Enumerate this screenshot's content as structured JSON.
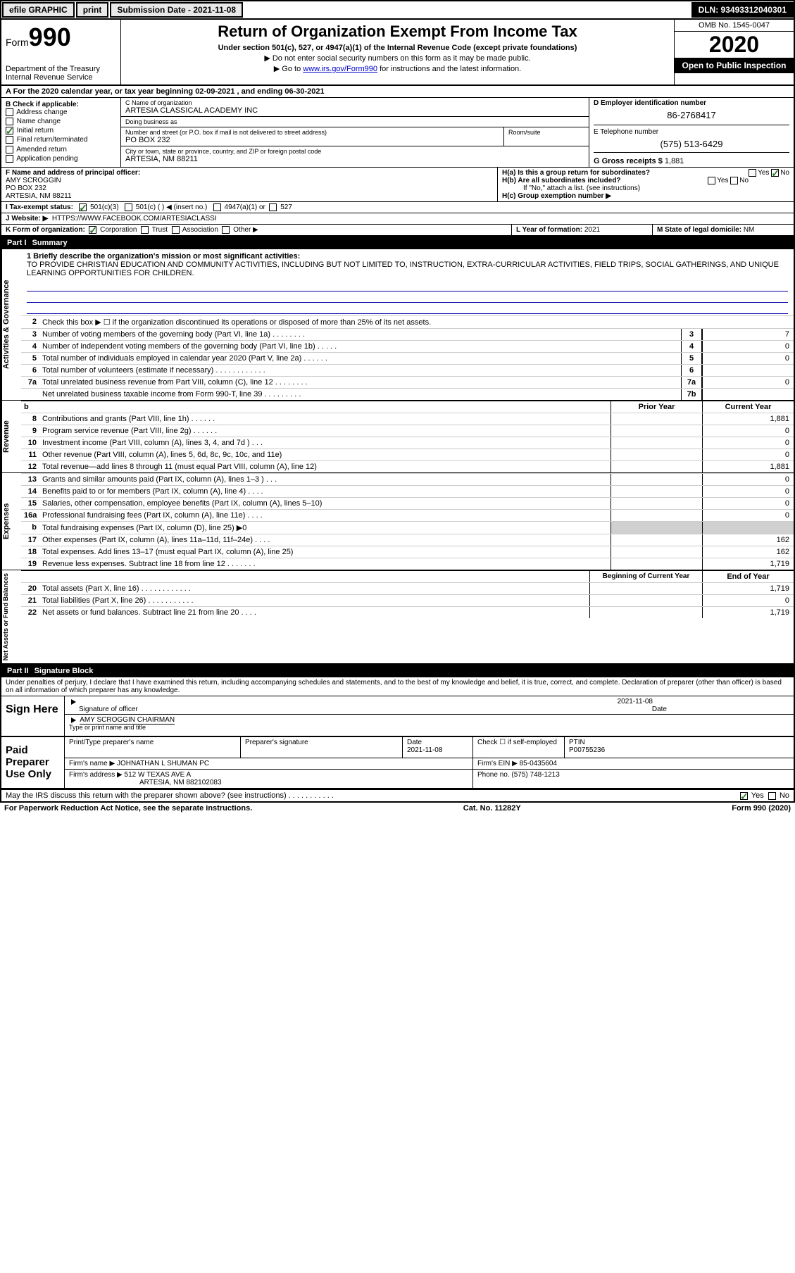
{
  "topbar": {
    "efile": "efile GRAPHIC",
    "print": "print",
    "submission_label": "Submission Date - 2021-11-08",
    "dln": "DLN: 93493312040301"
  },
  "header": {
    "form_label": "Form",
    "form_num": "990",
    "dept": "Department of the Treasury\nInternal Revenue Service",
    "title": "Return of Organization Exempt From Income Tax",
    "subtitle": "Under section 501(c), 527, or 4947(a)(1) of the Internal Revenue Code (except private foundations)",
    "note1": "▶ Do not enter social security numbers on this form as it may be made public.",
    "note2_pre": "▶ Go to ",
    "note2_link": "www.irs.gov/Form990",
    "note2_post": " for instructions and the latest information.",
    "omb": "OMB No. 1545-0047",
    "year": "2020",
    "inspection": "Open to Public Inspection"
  },
  "lineA": "A For the 2020 calendar year, or tax year beginning 02-09-2021   , and ending 06-30-2021",
  "sectionB": {
    "label": "B Check if applicable:",
    "items": [
      "Address change",
      "Name change",
      "Initial return",
      "Final return/terminated",
      "Amended return",
      "Application pending"
    ],
    "checked_index": 2
  },
  "sectionC": {
    "label": "C Name of organization",
    "name": "ARTESIA CLASSICAL ACADEMY INC",
    "dba_label": "Doing business as",
    "dba": "",
    "addr_label": "Number and street (or P.O. box if mail is not delivered to street address)",
    "addr": "PO BOX 232",
    "room_label": "Room/suite",
    "city_label": "City or town, state or province, country, and ZIP or foreign postal code",
    "city": "ARTESIA, NM  88211"
  },
  "sectionD": {
    "label": "D Employer identification number",
    "value": "86-2768417"
  },
  "sectionE": {
    "label": "E Telephone number",
    "value": "(575) 513-6429"
  },
  "sectionG": {
    "label": "G Gross receipts $ ",
    "value": "1,881"
  },
  "sectionF": {
    "label": "F  Name and address of principal officer:",
    "name": "AMY SCROGGIN",
    "addr1": "PO BOX 232",
    "addr2": "ARTESIA, NM  88211"
  },
  "sectionH": {
    "a": "H(a)  Is this a group return for subordinates?",
    "a_yes": "Yes",
    "a_no": "No",
    "b": "H(b)  Are all subordinates included?",
    "b_yes": "Yes",
    "b_no": "No",
    "b_note": "If \"No,\" attach a list. (see instructions)",
    "c": "H(c)  Group exemption number ▶"
  },
  "sectionI": {
    "label": "I  Tax-exempt status:",
    "opts": [
      "501(c)(3)",
      "501(c) (  ) ◀ (insert no.)",
      "4947(a)(1) or",
      "527"
    ],
    "checked_index": 0
  },
  "sectionJ": {
    "label": "J  Website: ▶",
    "value": "HTTPS://WWW.FACEBOOK.COM/ARTESIACLASSI"
  },
  "sectionK": {
    "label": "K Form of organization:",
    "opts": [
      "Corporation",
      "Trust",
      "Association",
      "Other ▶"
    ],
    "checked_index": 0
  },
  "sectionL": {
    "label": "L Year of formation: ",
    "value": "2021"
  },
  "sectionM": {
    "label": "M State of legal domicile: ",
    "value": "NM"
  },
  "part1": {
    "num": "Part I",
    "title": "Summary"
  },
  "mission": {
    "label": "1  Briefly describe the organization's mission or most significant activities:",
    "text": "TO PROVIDE CHRISTIAN EDUCATION AND COMMUNITY ACTIVITIES, INCLUDING BUT NOT LIMITED TO, INSTRUCTION, EXTRA-CURRICULAR ACTIVITIES, FIELD TRIPS, SOCIAL GATHERINGS, AND UNIQUE LEARNING OPPORTUNITIES FOR CHILDREN."
  },
  "line2": "Check this box ▶ ☐  if the organization discontinued its operations or disposed of more than 25% of its net assets.",
  "governance_lines": [
    {
      "n": "3",
      "d": "Number of voting members of the governing body (Part VI, line 1a)  .    .    .    .    .    .    .    .",
      "c": "3",
      "v": "7"
    },
    {
      "n": "4",
      "d": "Number of independent voting members of the governing body (Part VI, line 1b)  .    .    .    .    .",
      "c": "4",
      "v": "0"
    },
    {
      "n": "5",
      "d": "Total number of individuals employed in calendar year 2020 (Part V, line 2a)  .    .    .    .    .    .",
      "c": "5",
      "v": "0"
    },
    {
      "n": "6",
      "d": "Total number of volunteers (estimate if necessary)    .    .    .    .    .    .    .    .    .    .    .    .",
      "c": "6",
      "v": ""
    },
    {
      "n": "7a",
      "d": "Total unrelated business revenue from Part VIII, column (C), line 12   .    .    .    .    .    .    .    .",
      "c": "7a",
      "v": "0"
    },
    {
      "n": "",
      "d": "Net unrelated business taxable income from Form 990-T, line 39   .    .    .    .    .    .    .    .    .",
      "c": "7b",
      "v": ""
    }
  ],
  "col_headers": {
    "b": "b",
    "prior": "Prior Year",
    "current": "Current Year"
  },
  "revenue_lines": [
    {
      "n": "8",
      "d": "Contributions and grants (Part VIII, line 1h)   .    .    .    .    .    .",
      "p": "",
      "c": "1,881"
    },
    {
      "n": "9",
      "d": "Program service revenue (Part VIII, line 2g)   .    .    .    .    .    .",
      "p": "",
      "c": "0"
    },
    {
      "n": "10",
      "d": "Investment income (Part VIII, column (A), lines 3, 4, and 7d )   .    .    .",
      "p": "",
      "c": "0"
    },
    {
      "n": "11",
      "d": "Other revenue (Part VIII, column (A), lines 5, 6d, 8c, 9c, 10c, and 11e)",
      "p": "",
      "c": "0"
    },
    {
      "n": "12",
      "d": "Total revenue—add lines 8 through 11 (must equal Part VIII, column (A), line 12)",
      "p": "",
      "c": "1,881"
    }
  ],
  "expense_lines": [
    {
      "n": "13",
      "d": "Grants and similar amounts paid (Part IX, column (A), lines 1–3 )   .    .    .",
      "p": "",
      "c": "0"
    },
    {
      "n": "14",
      "d": "Benefits paid to or for members (Part IX, column (A), line 4)   .    .    .    .",
      "p": "",
      "c": "0"
    },
    {
      "n": "15",
      "d": "Salaries, other compensation, employee benefits (Part IX, column (A), lines 5–10)",
      "p": "",
      "c": "0"
    },
    {
      "n": "16a",
      "d": "Professional fundraising fees (Part IX, column (A), line 11e)   .    .    .    .",
      "p": "",
      "c": "0"
    },
    {
      "n": "b",
      "d": "Total fundraising expenses (Part IX, column (D), line 25) ▶0",
      "p": "gray",
      "c": "gray"
    },
    {
      "n": "17",
      "d": "Other expenses (Part IX, column (A), lines 11a–11d, 11f–24e)   .    .    .    .",
      "p": "",
      "c": "162"
    },
    {
      "n": "18",
      "d": "Total expenses. Add lines 13–17 (must equal Part IX, column (A), line 25)",
      "p": "",
      "c": "162"
    },
    {
      "n": "19",
      "d": "Revenue less expenses. Subtract line 18 from line 12   .    .    .    .    .    .    .",
      "p": "",
      "c": "1,719"
    }
  ],
  "net_headers": {
    "begin": "Beginning of Current Year",
    "end": "End of Year"
  },
  "net_lines": [
    {
      "n": "20",
      "d": "Total assets (Part X, line 16)   .    .    .    .    .    .    .    .    .    .    .    .",
      "p": "",
      "c": "1,719"
    },
    {
      "n": "21",
      "d": "Total liabilities (Part X, line 26)   .    .    .    .    .    .    .    .    .    .    .",
      "p": "",
      "c": "0"
    },
    {
      "n": "22",
      "d": "Net assets or fund balances. Subtract line 21 from line 20   .    .    .    .",
      "p": "",
      "c": "1,719"
    }
  ],
  "part2": {
    "num": "Part II",
    "title": "Signature Block"
  },
  "penalties": "Under penalties of perjury, I declare that I have examined this return, including accompanying schedules and statements, and to the best of my knowledge and belief, it is true, correct, and complete. Declaration of preparer (other than officer) is based on all information of which preparer has any knowledge.",
  "sign": {
    "here": "Sign Here",
    "sig_label": "Signature of officer",
    "date_label": "Date",
    "date": "2021-11-08",
    "name": "AMY SCROGGIN  CHAIRMAN",
    "name_label": "Type or print name and title"
  },
  "paid": {
    "label": "Paid Preparer Use Only",
    "h1": "Print/Type preparer's name",
    "h2": "Preparer's signature",
    "h3": "Date",
    "h3v": "2021-11-08",
    "h4": "Check ☐ if self-employed",
    "h5": "PTIN",
    "h5v": "P00755236",
    "firm_label": "Firm's name    ▶",
    "firm": "JOHNATHAN L SHUMAN PC",
    "ein_label": "Firm's EIN ▶",
    "ein": "85-0435604",
    "addr_label": "Firm's address ▶",
    "addr1": "512 W TEXAS AVE A",
    "addr2": "ARTESIA, NM  882102083",
    "phone_label": "Phone no.",
    "phone": "(575) 748-1213"
  },
  "discuss": {
    "text": "May the IRS discuss this return with the preparer shown above? (see instructions)    .    .    .    .    .    .    .    .    .    .    .",
    "yes": "Yes",
    "no": "No"
  },
  "footer": {
    "pra": "For Paperwork Reduction Act Notice, see the separate instructions.",
    "cat": "Cat. No. 11282Y",
    "form": "Form 990 (2020)"
  },
  "sidebars": {
    "gov": "Activities & Governance",
    "rev": "Revenue",
    "exp": "Expenses",
    "net": "Net Assets or Fund Balances"
  }
}
